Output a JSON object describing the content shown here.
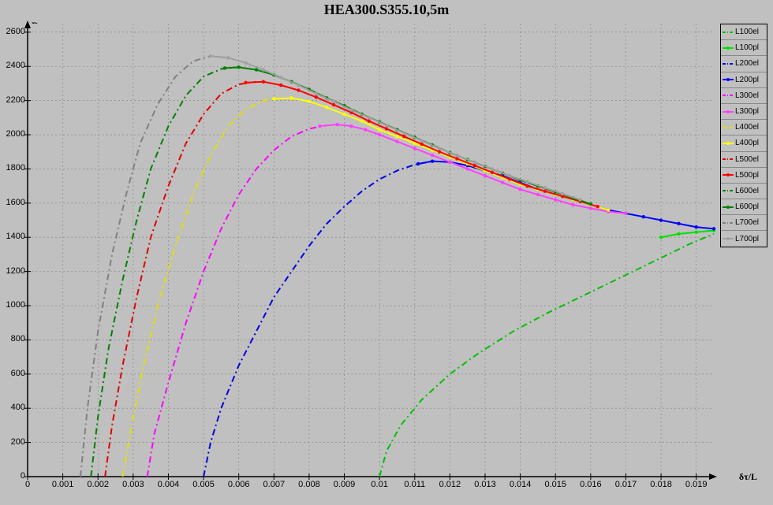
{
  "chart": {
    "type": "line",
    "title": "HEA300.S355.10,5m",
    "background_color": "#c0c0c0",
    "grid_color": "#808080",
    "axis_color": "#000000",
    "y_axis": {
      "label": "P",
      "min": 0,
      "max": 2650,
      "ticks": [
        0,
        200,
        400,
        600,
        800,
        1000,
        1200,
        1400,
        1600,
        1800,
        2000,
        2200,
        2400,
        2600
      ]
    },
    "x_axis": {
      "label": "δτ/L",
      "min": 0,
      "max": 0.0195,
      "ticks": [
        0,
        0.001,
        0.002,
        0.003,
        0.004,
        0.005,
        0.006,
        0.007,
        0.008,
        0.009,
        0.01,
        0.011,
        0.012,
        0.013,
        0.014,
        0.015,
        0.016,
        0.017,
        0.018,
        0.019
      ]
    },
    "title_fontsize": 18,
    "tick_fontsize": 11
  },
  "series": [
    {
      "name": "L100el",
      "color": "#00c000",
      "style": "dashdot",
      "marker": false,
      "points": [
        [
          0.01,
          0
        ],
        [
          0.0102,
          150
        ],
        [
          0.0106,
          300
        ],
        [
          0.0112,
          450
        ],
        [
          0.012,
          600
        ],
        [
          0.0128,
          720
        ],
        [
          0.0138,
          850
        ],
        [
          0.0148,
          960
        ],
        [
          0.0158,
          1060
        ],
        [
          0.0168,
          1160
        ],
        [
          0.0178,
          1260
        ],
        [
          0.0188,
          1360
        ],
        [
          0.0195,
          1420
        ]
      ]
    },
    {
      "name": "L100pl",
      "color": "#00e000",
      "style": "solid",
      "marker": true,
      "points": [
        [
          0.018,
          1400
        ],
        [
          0.0185,
          1420
        ],
        [
          0.019,
          1430
        ],
        [
          0.0195,
          1440
        ]
      ]
    },
    {
      "name": "L200el",
      "color": "#0000e0",
      "style": "dashdot",
      "marker": false,
      "points": [
        [
          0.005,
          0
        ],
        [
          0.0052,
          200
        ],
        [
          0.0055,
          400
        ],
        [
          0.006,
          650
        ],
        [
          0.0065,
          850
        ],
        [
          0.007,
          1050
        ],
        [
          0.0075,
          1200
        ],
        [
          0.008,
          1350
        ],
        [
          0.0085,
          1480
        ],
        [
          0.009,
          1580
        ],
        [
          0.0095,
          1670
        ],
        [
          0.01,
          1740
        ],
        [
          0.0105,
          1790
        ],
        [
          0.011,
          1825
        ],
        [
          0.0115,
          1845
        ]
      ]
    },
    {
      "name": "L200pl",
      "color": "#0000ff",
      "style": "solid",
      "marker": true,
      "points": [
        [
          0.0111,
          1830
        ],
        [
          0.0115,
          1845
        ],
        [
          0.012,
          1840
        ],
        [
          0.0125,
          1820
        ],
        [
          0.013,
          1790
        ],
        [
          0.0135,
          1760
        ],
        [
          0.014,
          1720
        ],
        [
          0.0145,
          1680
        ],
        [
          0.015,
          1650
        ],
        [
          0.0155,
          1620
        ],
        [
          0.016,
          1590
        ],
        [
          0.0165,
          1560
        ],
        [
          0.017,
          1540
        ],
        [
          0.0175,
          1520
        ],
        [
          0.018,
          1500
        ],
        [
          0.0185,
          1480
        ],
        [
          0.019,
          1460
        ],
        [
          0.0195,
          1450
        ]
      ]
    },
    {
      "name": "L300el",
      "color": "#ff00ff",
      "style": "dashdot",
      "marker": false,
      "points": [
        [
          0.0034,
          0
        ],
        [
          0.0036,
          250
        ],
        [
          0.004,
          550
        ],
        [
          0.0045,
          900
        ],
        [
          0.005,
          1200
        ],
        [
          0.0055,
          1450
        ],
        [
          0.006,
          1650
        ],
        [
          0.0065,
          1800
        ],
        [
          0.007,
          1910
        ],
        [
          0.0075,
          1990
        ],
        [
          0.008,
          2035
        ],
        [
          0.0085,
          2055
        ]
      ]
    },
    {
      "name": "L300pl",
      "color": "#ff40ff",
      "style": "solid",
      "marker": true,
      "points": [
        [
          0.0083,
          2050
        ],
        [
          0.0088,
          2060
        ],
        [
          0.0092,
          2050
        ],
        [
          0.0096,
          2030
        ],
        [
          0.01,
          2000
        ],
        [
          0.0105,
          1960
        ],
        [
          0.011,
          1920
        ],
        [
          0.0115,
          1880
        ],
        [
          0.012,
          1840
        ],
        [
          0.0125,
          1800
        ],
        [
          0.013,
          1760
        ],
        [
          0.0135,
          1720
        ],
        [
          0.014,
          1680
        ],
        [
          0.0145,
          1650
        ],
        [
          0.015,
          1620
        ],
        [
          0.0155,
          1590
        ],
        [
          0.016,
          1570
        ],
        [
          0.0165,
          1550
        ],
        [
          0.017,
          1540
        ]
      ]
    },
    {
      "name": "L400el",
      "color": "#e0e000",
      "style": "dashdot",
      "marker": false,
      "points": [
        [
          0.0027,
          0
        ],
        [
          0.003,
          350
        ],
        [
          0.0033,
          650
        ],
        [
          0.0037,
          1000
        ],
        [
          0.0042,
          1350
        ],
        [
          0.0047,
          1650
        ],
        [
          0.0052,
          1880
        ],
        [
          0.0057,
          2050
        ],
        [
          0.0062,
          2150
        ],
        [
          0.0067,
          2200
        ],
        [
          0.0072,
          2215
        ]
      ]
    },
    {
      "name": "L400pl",
      "color": "#ffff00",
      "style": "solid",
      "marker": true,
      "points": [
        [
          0.007,
          2210
        ],
        [
          0.0075,
          2215
        ],
        [
          0.008,
          2195
        ],
        [
          0.0085,
          2160
        ],
        [
          0.009,
          2120
        ],
        [
          0.0095,
          2080
        ],
        [
          0.01,
          2030
        ],
        [
          0.0105,
          1990
        ],
        [
          0.011,
          1950
        ],
        [
          0.0115,
          1910
        ],
        [
          0.012,
          1870
        ],
        [
          0.0125,
          1830
        ],
        [
          0.013,
          1790
        ],
        [
          0.0135,
          1750
        ],
        [
          0.014,
          1710
        ],
        [
          0.0145,
          1680
        ],
        [
          0.015,
          1650
        ],
        [
          0.0155,
          1620
        ],
        [
          0.016,
          1590
        ],
        [
          0.0165,
          1560
        ]
      ]
    },
    {
      "name": "L500el",
      "color": "#e00000",
      "style": "dashdot",
      "marker": false,
      "points": [
        [
          0.0022,
          0
        ],
        [
          0.0024,
          300
        ],
        [
          0.0027,
          650
        ],
        [
          0.0031,
          1050
        ],
        [
          0.0035,
          1400
        ],
        [
          0.004,
          1700
        ],
        [
          0.0045,
          1950
        ],
        [
          0.005,
          2120
        ],
        [
          0.0055,
          2240
        ],
        [
          0.006,
          2295
        ],
        [
          0.0065,
          2310
        ]
      ]
    },
    {
      "name": "L500pl",
      "color": "#ff0000",
      "style": "solid",
      "marker": true,
      "points": [
        [
          0.0062,
          2305
        ],
        [
          0.0067,
          2310
        ],
        [
          0.0072,
          2290
        ],
        [
          0.0077,
          2260
        ],
        [
          0.0082,
          2220
        ],
        [
          0.0087,
          2175
        ],
        [
          0.0092,
          2130
        ],
        [
          0.0097,
          2080
        ],
        [
          0.0102,
          2035
        ],
        [
          0.0107,
          1990
        ],
        [
          0.0112,
          1945
        ],
        [
          0.0117,
          1900
        ],
        [
          0.0122,
          1860
        ],
        [
          0.0127,
          1820
        ],
        [
          0.0132,
          1780
        ],
        [
          0.0137,
          1740
        ],
        [
          0.0142,
          1700
        ],
        [
          0.0147,
          1670
        ],
        [
          0.0152,
          1640
        ],
        [
          0.0157,
          1610
        ],
        [
          0.0162,
          1580
        ]
      ]
    },
    {
      "name": "L600el",
      "color": "#008000",
      "style": "dashdot",
      "marker": false,
      "points": [
        [
          0.0018,
          0
        ],
        [
          0.002,
          350
        ],
        [
          0.0023,
          750
        ],
        [
          0.0027,
          1150
        ],
        [
          0.0031,
          1500
        ],
        [
          0.0035,
          1800
        ],
        [
          0.004,
          2050
        ],
        [
          0.0045,
          2230
        ],
        [
          0.005,
          2340
        ],
        [
          0.0055,
          2385
        ],
        [
          0.006,
          2395
        ]
      ]
    },
    {
      "name": "L600pl",
      "color": "#008000",
      "style": "solid",
      "marker": true,
      "points": [
        [
          0.0056,
          2390
        ],
        [
          0.006,
          2395
        ],
        [
          0.0065,
          2380
        ],
        [
          0.007,
          2350
        ],
        [
          0.0075,
          2310
        ],
        [
          0.008,
          2265
        ],
        [
          0.0085,
          2215
        ],
        [
          0.009,
          2170
        ],
        [
          0.0095,
          2120
        ],
        [
          0.01,
          2075
        ],
        [
          0.0105,
          2030
        ],
        [
          0.011,
          1985
        ],
        [
          0.0115,
          1940
        ],
        [
          0.012,
          1895
        ],
        [
          0.0125,
          1855
        ],
        [
          0.013,
          1815
        ],
        [
          0.0135,
          1775
        ],
        [
          0.014,
          1735
        ],
        [
          0.0145,
          1700
        ],
        [
          0.015,
          1665
        ],
        [
          0.0155,
          1630
        ],
        [
          0.016,
          1595
        ]
      ]
    },
    {
      "name": "L700el",
      "color": "#808080",
      "style": "dashdot",
      "marker": false,
      "points": [
        [
          0.0015,
          0
        ],
        [
          0.0017,
          400
        ],
        [
          0.002,
          850
        ],
        [
          0.0024,
          1300
        ],
        [
          0.0028,
          1650
        ],
        [
          0.0032,
          1950
        ],
        [
          0.0037,
          2180
        ],
        [
          0.0042,
          2340
        ],
        [
          0.0047,
          2430
        ],
        [
          0.0052,
          2460
        ],
        [
          0.0057,
          2450
        ]
      ]
    },
    {
      "name": "L700pl",
      "color": "#a0a0a0",
      "style": "solid",
      "marker": true,
      "points": [
        [
          0.0052,
          2460
        ],
        [
          0.0057,
          2450
        ],
        [
          0.0062,
          2420
        ],
        [
          0.0067,
          2380
        ],
        [
          0.0072,
          2335
        ],
        [
          0.0077,
          2290
        ],
        [
          0.0082,
          2240
        ],
        [
          0.0087,
          2195
        ],
        [
          0.0092,
          2145
        ],
        [
          0.0097,
          2100
        ],
        [
          0.0102,
          2055
        ],
        [
          0.0107,
          2010
        ],
        [
          0.0112,
          1965
        ],
        [
          0.0117,
          1920
        ],
        [
          0.0122,
          1880
        ],
        [
          0.0127,
          1840
        ],
        [
          0.0132,
          1800
        ],
        [
          0.0137,
          1760
        ],
        [
          0.0142,
          1725
        ],
        [
          0.0147,
          1690
        ],
        [
          0.0152,
          1655
        ],
        [
          0.0157,
          1620
        ]
      ]
    }
  ],
  "legend": {
    "items": [
      "L100el",
      "L100pl",
      "L200el",
      "L200pl",
      "L300el",
      "L300pl",
      "L400el",
      "L400pl",
      "L500el",
      "L500pl",
      "L600el",
      "L600pl",
      "L700el",
      "L700pl"
    ]
  }
}
